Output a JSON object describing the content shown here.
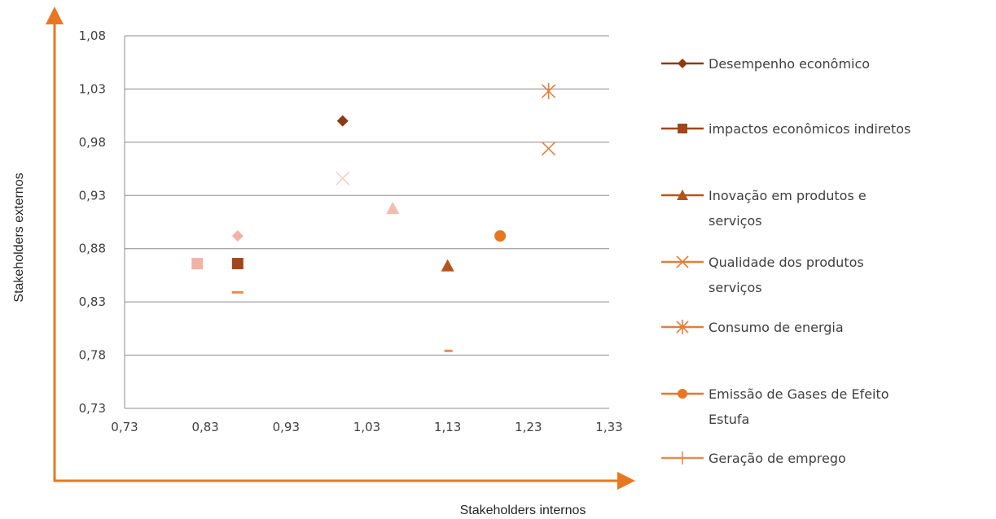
{
  "chart_data": {
    "type": "scatter",
    "xlabel": "Stakeholders internos",
    "ylabel": "Stakeholders  externos",
    "xlim": [
      0.73,
      1.33
    ],
    "ylim": [
      0.73,
      1.08
    ],
    "x_ticks": [
      "0,73",
      "0,83",
      "0,93",
      "1,03",
      "1,13",
      "1,23",
      "1,33"
    ],
    "y_ticks": [
      "1,08",
      "1,03",
      "0,98",
      "0,93",
      "0,88",
      "0,83",
      "0,78",
      "0,73"
    ],
    "grid": "horizontal",
    "legend_position": "right",
    "series": [
      {
        "name": "Desempenho econômico",
        "marker": "diamond",
        "color": "#8B3A14",
        "points": [
          {
            "x": 1.0,
            "y": 1.0
          }
        ]
      },
      {
        "name": "impactos econômicos indiretos",
        "marker": "square",
        "color": "#A0461C",
        "points": [
          {
            "x": 0.87,
            "y": 0.866
          }
        ]
      },
      {
        "name": "Inovação em produtos e serviços",
        "marker": "triangle",
        "color": "#B5541E",
        "points": [
          {
            "x": 1.13,
            "y": 0.864
          }
        ]
      },
      {
        "name": "Qualidade dos produtos serviços",
        "marker": "x",
        "color": "#E07F3E",
        "points": [
          {
            "x": 1.255,
            "y": 0.974
          }
        ]
      },
      {
        "name": "Consumo de energia",
        "marker": "star",
        "color": "#E07F3E",
        "points": [
          {
            "x": 1.255,
            "y": 1.028
          }
        ]
      },
      {
        "name": "Emissão de Gases de Efeito Estufa",
        "marker": "circle",
        "color": "#E87722",
        "points": [
          {
            "x": 1.195,
            "y": 0.892
          }
        ]
      },
      {
        "name": "Geração de emprego",
        "marker": "plus",
        "color": "#EB8B4A",
        "points": [
          {
            "x": 1.13,
            "y": 0.784
          }
        ]
      },
      {
        "name": "",
        "marker": "square",
        "color": "#F2B3A6",
        "points": [
          {
            "x": 0.82,
            "y": 0.866
          }
        ]
      },
      {
        "name": "",
        "marker": "diamond",
        "color": "#F2B3A6",
        "points": [
          {
            "x": 0.87,
            "y": 0.892
          }
        ]
      },
      {
        "name": "",
        "marker": "x",
        "color": "#F7D0C8",
        "points": [
          {
            "x": 1.0,
            "y": 0.946
          }
        ]
      },
      {
        "name": "",
        "marker": "triangle",
        "color": "#F4BCAE",
        "points": [
          {
            "x": 1.062,
            "y": 0.918
          }
        ]
      },
      {
        "name": "",
        "marker": "plus",
        "color": "#EB8B4A",
        "points": [
          {
            "x": 0.87,
            "y": 0.839
          }
        ]
      }
    ],
    "legend": [
      {
        "lines": [
          "Desempenho econômico"
        ],
        "marker": "diamond",
        "color": "#8B3A14"
      },
      {
        "lines": [
          "impactos econômicos indiretos"
        ],
        "marker": "square",
        "color": "#A0461C"
      },
      {
        "lines": [
          "Inovação em produtos e",
          "serviços"
        ],
        "marker": "triangle",
        "color": "#B5541E"
      },
      {
        "lines": [
          "Qualidade dos produtos",
          "serviços"
        ],
        "marker": "x",
        "color": "#E07F3E"
      },
      {
        "lines": [
          "Consumo de energia"
        ],
        "marker": "star",
        "color": "#E07F3E"
      },
      {
        "lines": [
          "Emissão de Gases de Efeito",
          "Estufa"
        ],
        "marker": "circle",
        "color": "#E87722"
      },
      {
        "lines": [
          "Geração de emprego"
        ],
        "marker": "plus",
        "color": "#EB8B4A"
      }
    ],
    "colors": {
      "axis_arrow": "#E87722",
      "grid": "#8C8C8C",
      "plot_border": "#8C8C8C"
    }
  }
}
